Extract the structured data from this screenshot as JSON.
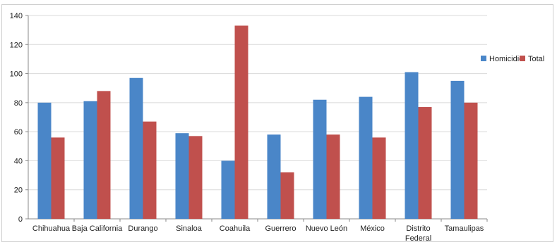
{
  "chart_data": {
    "type": "bar",
    "title": "",
    "xlabel": "",
    "ylabel": "",
    "ylim": [
      0,
      140
    ],
    "yticks": [
      0,
      20,
      40,
      60,
      80,
      100,
      120,
      140
    ],
    "grid": true,
    "legend_position": "right",
    "categories": [
      [
        "Chihuahua"
      ],
      [
        "Baja California"
      ],
      [
        "Durango"
      ],
      [
        "Sinaloa"
      ],
      [
        "Coahuila"
      ],
      [
        "Guerrero"
      ],
      [
        "Nuevo León"
      ],
      [
        "México"
      ],
      [
        "Distrito",
        "Federal"
      ],
      [
        "Tamaulipas"
      ]
    ],
    "series": [
      {
        "name": "Homicidio",
        "color": "#4a86c8",
        "values": [
          80,
          81,
          97,
          59,
          40,
          58,
          82,
          84,
          101,
          95
        ]
      },
      {
        "name": "Total",
        "color": "#c0504d",
        "values": [
          56,
          88,
          67,
          57,
          133,
          32,
          58,
          56,
          77,
          80
        ]
      }
    ]
  }
}
